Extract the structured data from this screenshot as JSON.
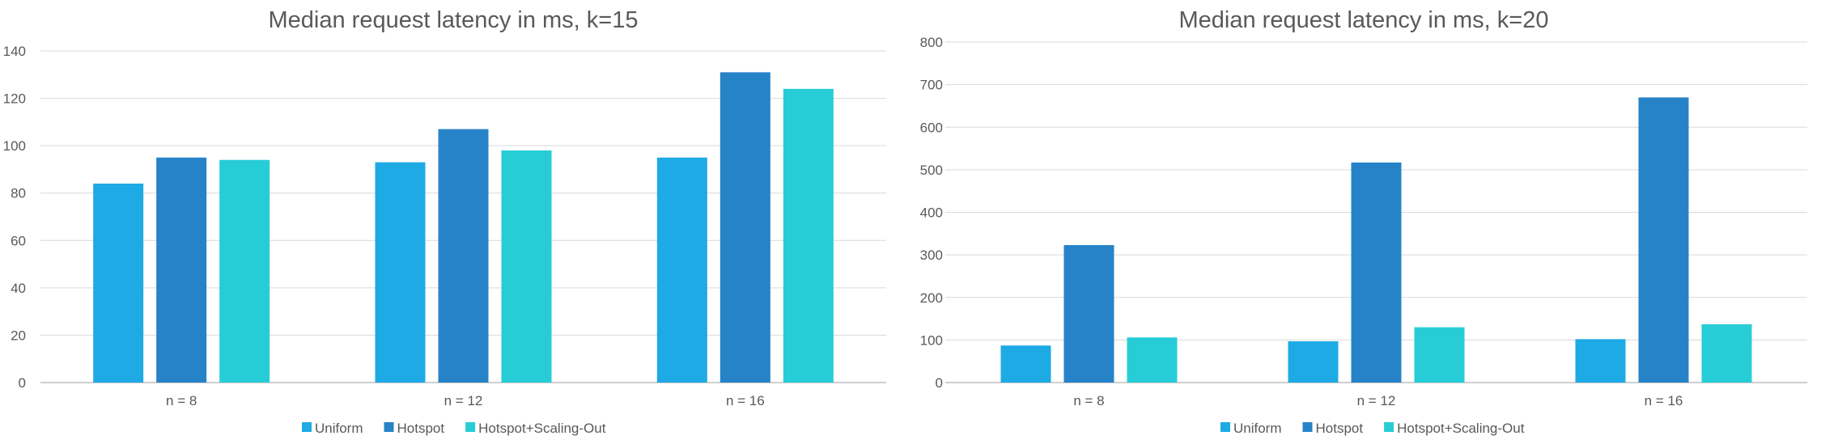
{
  "colors": {
    "uniform": "#1eaae4",
    "hotspot": "#2783c8",
    "scaling": "#27cdd6"
  },
  "chart_data": [
    {
      "type": "bar",
      "title": "Median request latency in ms, k=15",
      "categories": [
        "n = 8",
        "n = 12",
        "n = 16"
      ],
      "series": [
        {
          "name": "Uniform",
          "values": [
            84,
            93,
            95
          ]
        },
        {
          "name": "Hotspot",
          "values": [
            95,
            107,
            131
          ]
        },
        {
          "name": "Hotspot+Scaling-Out",
          "values": [
            94,
            98,
            124
          ]
        }
      ],
      "ylim": [
        0,
        140
      ],
      "yticks": [
        0,
        20,
        40,
        60,
        80,
        100,
        120,
        140
      ],
      "grid": true,
      "legend": "bottom"
    },
    {
      "type": "bar",
      "title": "Median request latency in ms, k=20",
      "categories": [
        "n = 8",
        "n = 12",
        "n = 16"
      ],
      "series": [
        {
          "name": "Uniform",
          "values": [
            87,
            97,
            102
          ]
        },
        {
          "name": "Hotspot",
          "values": [
            323,
            517,
            670
          ]
        },
        {
          "name": "Hotspot+Scaling-Out",
          "values": [
            106,
            130,
            137
          ]
        }
      ],
      "ylim": [
        0,
        800
      ],
      "yticks": [
        0,
        100,
        200,
        300,
        400,
        500,
        600,
        700,
        800
      ],
      "grid": true,
      "legend": "bottom"
    }
  ]
}
